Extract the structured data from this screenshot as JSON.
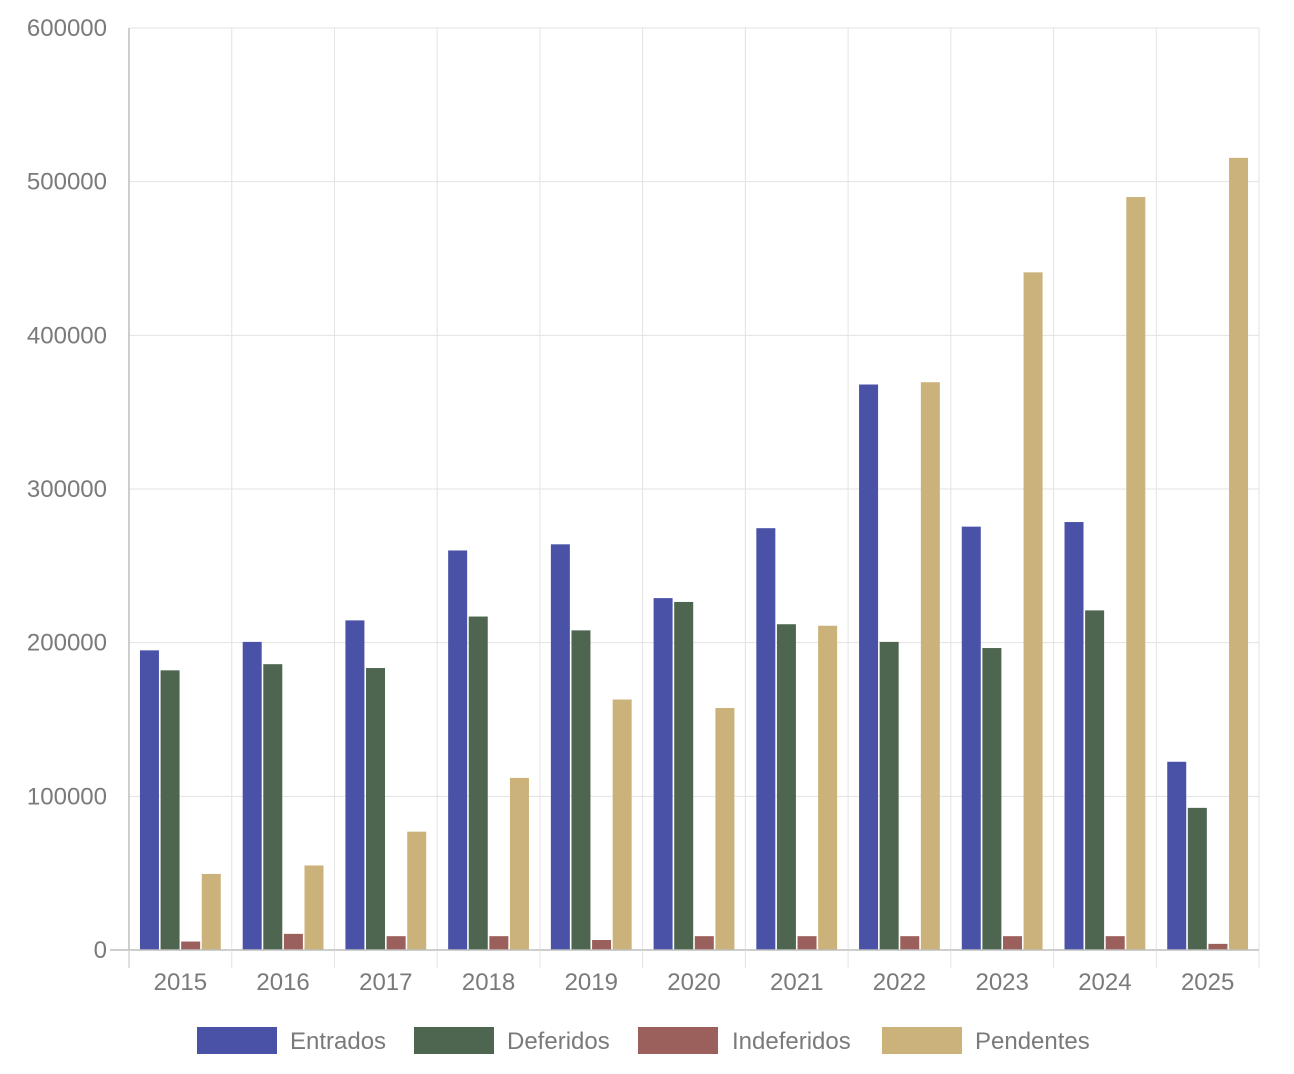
{
  "chart_data": {
    "type": "bar",
    "categories": [
      "2015",
      "2016",
      "2017",
      "2018",
      "2019",
      "2020",
      "2021",
      "2022",
      "2023",
      "2024",
      "2025"
    ],
    "series": [
      {
        "name": "Entrados",
        "color": "#4a52a8",
        "values": [
          195000,
          200500,
          214500,
          260000,
          264000,
          229000,
          274500,
          368000,
          275500,
          278500,
          122500
        ]
      },
      {
        "name": "Deferidos",
        "color": "#4e6650",
        "values": [
          182000,
          186000,
          183500,
          217000,
          208000,
          226500,
          212000,
          200500,
          196500,
          221000,
          92500
        ]
      },
      {
        "name": "Indeferidos",
        "color": "#9b5f5c",
        "values": [
          5500,
          10500,
          9000,
          9000,
          6500,
          9000,
          9000,
          9000,
          9000,
          9000,
          4000
        ]
      },
      {
        "name": "Pendentes",
        "color": "#cbb27a",
        "values": [
          49500,
          55000,
          77000,
          112000,
          163000,
          157500,
          211000,
          369500,
          441000,
          490000,
          515500
        ]
      }
    ],
    "yticks": [
      "0",
      "100000",
      "200000",
      "300000",
      "400000",
      "500000",
      "600000"
    ],
    "ylim": [
      0,
      600000
    ],
    "title": "",
    "xlabel": "",
    "ylabel": "",
    "grid": true,
    "legend": "bottom"
  }
}
